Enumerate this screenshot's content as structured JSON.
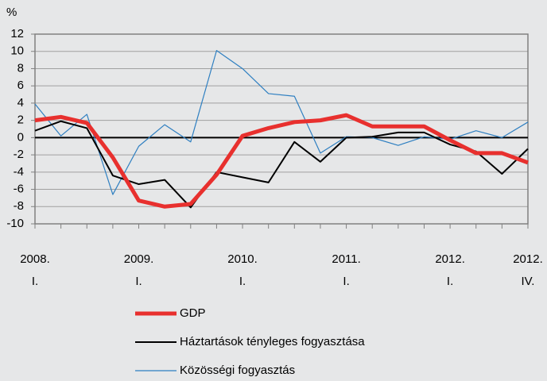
{
  "chart_data": {
    "type": "line",
    "y_label": "%",
    "categories": [
      [
        "2008.",
        "I."
      ],
      null,
      null,
      null,
      [
        "2009.",
        "I."
      ],
      null,
      null,
      null,
      [
        "2010.",
        "I."
      ],
      null,
      null,
      null,
      [
        "2011.",
        "I."
      ],
      null,
      null,
      null,
      [
        "2012.",
        "I."
      ],
      null,
      null,
      [
        "2012.",
        "IV."
      ]
    ],
    "series": [
      {
        "name": "GDP",
        "color": "#e8302e",
        "width": 5,
        "values": [
          2.0,
          2.4,
          1.7,
          -2.3,
          -7.3,
          -8.0,
          -7.7,
          -4.3,
          0.2,
          1.1,
          1.8,
          2.0,
          2.6,
          1.3,
          1.3,
          1.3,
          -0.3,
          -1.8,
          -1.8,
          -2.9
        ]
      },
      {
        "name": "Háztartások tényleges fogyasztása",
        "color": "#000000",
        "width": 2,
        "values": [
          0.8,
          1.9,
          1.1,
          -4.4,
          -5.4,
          -4.9,
          -8.1,
          -4.0,
          -4.6,
          -5.2,
          -0.5,
          -2.8,
          0.0,
          0.1,
          0.6,
          0.6,
          -0.8,
          -1.6,
          -4.2,
          -1.3
        ]
      },
      {
        "name": "Közösségi fogyasztás",
        "color": "#2e7fc1",
        "width": 1.2,
        "values": [
          3.9,
          0.2,
          2.7,
          -6.6,
          -1.0,
          1.5,
          -0.5,
          10.1,
          8.0,
          5.1,
          4.8,
          -1.8,
          0.1,
          0.0,
          -0.9,
          0.1,
          -0.2,
          0.8,
          0.0,
          1.8
        ]
      }
    ],
    "ylim": [
      -10,
      12
    ],
    "yticks": [
      -10,
      -8,
      -6,
      -4,
      -2,
      0,
      2,
      4,
      6,
      8,
      10,
      12
    ],
    "grid": true
  }
}
